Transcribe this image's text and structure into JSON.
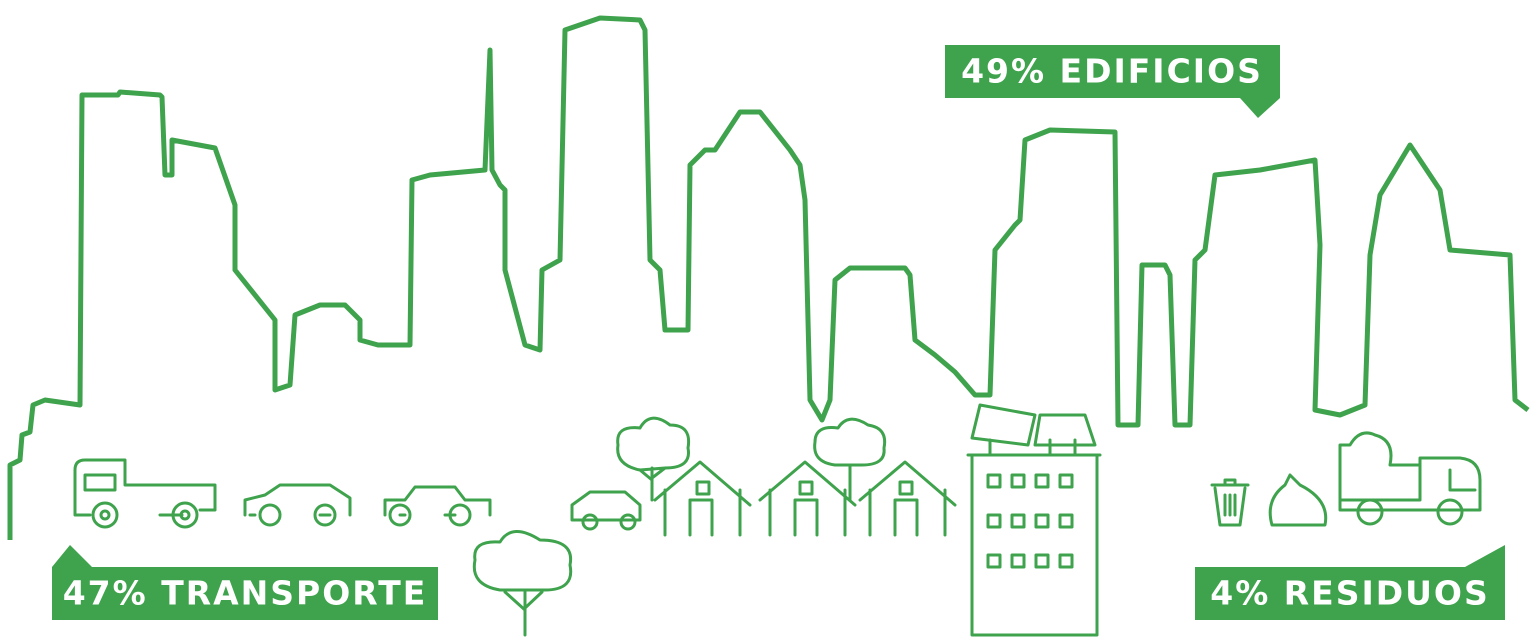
{
  "labels": {
    "buildings": "49% EDIFICIOS",
    "transport": "47% TRANSPORTE",
    "waste": "4% RESIDUOS"
  }
}
